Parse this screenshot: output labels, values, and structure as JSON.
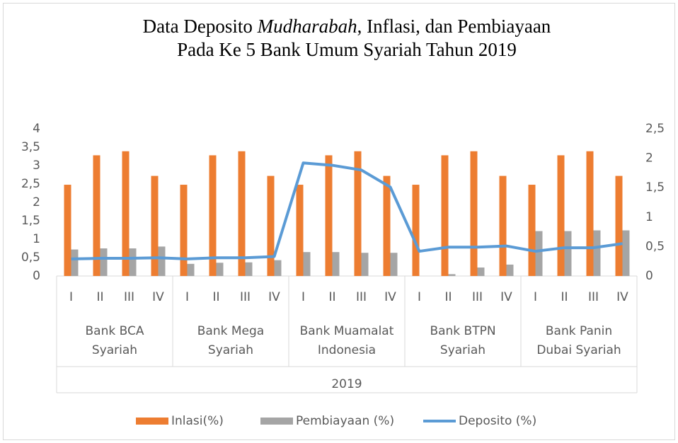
{
  "chart_data": {
    "type": "bar_line",
    "title": [
      [
        "Data Deposito ",
        "Mudharabah",
        ", Inflasi, dan Pembiayaan"
      ],
      [
        "Pada Ke 5 Bank Umum Syariah Tahun 2019"
      ]
    ],
    "categories": [
      "I",
      "II",
      "III",
      "IV",
      "I",
      "II",
      "III",
      "IV",
      "I",
      "II",
      "III",
      "IV",
      "I",
      "II",
      "III",
      "IV",
      "I",
      "II",
      "III",
      "IV"
    ],
    "groups": [
      [
        "Bank BCA",
        "Syariah"
      ],
      [
        "Bank Mega",
        "Syariah"
      ],
      [
        "Bank Muamalat",
        "Indonesia"
      ],
      [
        "Bank BTPN",
        "Syariah"
      ],
      [
        "Bank Panin",
        "Dubai Syariah"
      ]
    ],
    "year": "2019",
    "series": [
      {
        "name": "Inlasi(%)",
        "type": "bar",
        "color": "#ed7d31",
        "values": [
          2.48,
          3.28,
          3.39,
          2.72,
          2.48,
          3.28,
          3.39,
          2.72,
          2.48,
          3.28,
          3.39,
          2.72,
          2.48,
          3.28,
          3.39,
          2.72,
          2.48,
          3.28,
          3.39,
          2.72
        ]
      },
      {
        "name": "Pembiayaan (%)",
        "type": "bar",
        "color": "#a5a5a5",
        "values": [
          0.72,
          0.75,
          0.75,
          0.8,
          0.33,
          0.36,
          0.37,
          0.43,
          0.65,
          0.65,
          0.63,
          0.63,
          0,
          0.05,
          0.23,
          0.31,
          1.22,
          1.22,
          1.24,
          1.24
        ]
      },
      {
        "name": "Deposito (%)",
        "type": "line",
        "axis": "y2",
        "color": "#5b9bd5",
        "values": [
          0.29,
          0.3,
          0.3,
          0.31,
          0.29,
          0.31,
          0.31,
          0.33,
          1.92,
          1.88,
          1.8,
          1.51,
          0.42,
          0.49,
          0.49,
          0.51,
          0.42,
          0.48,
          0.48,
          0.55
        ]
      }
    ],
    "ylim": [
      0,
      4
    ],
    "yticks": [
      0,
      {
        "value": 0.5,
        "label": "0,5"
      },
      1,
      {
        "value": 1.5,
        "label": "1,5"
      },
      2,
      {
        "value": 2.5,
        "label": "2,5"
      },
      3,
      {
        "value": 3.5,
        "label": "3,5"
      },
      4
    ],
    "y2lim": [
      0,
      2.5
    ],
    "y2ticks": [
      0,
      {
        "value": 0.5,
        "label": "0,5"
      },
      1,
      {
        "value": 1.5,
        "label": "1,5"
      },
      2,
      {
        "value": 2.5,
        "label": "2,5"
      }
    ],
    "legend": "bottom"
  }
}
